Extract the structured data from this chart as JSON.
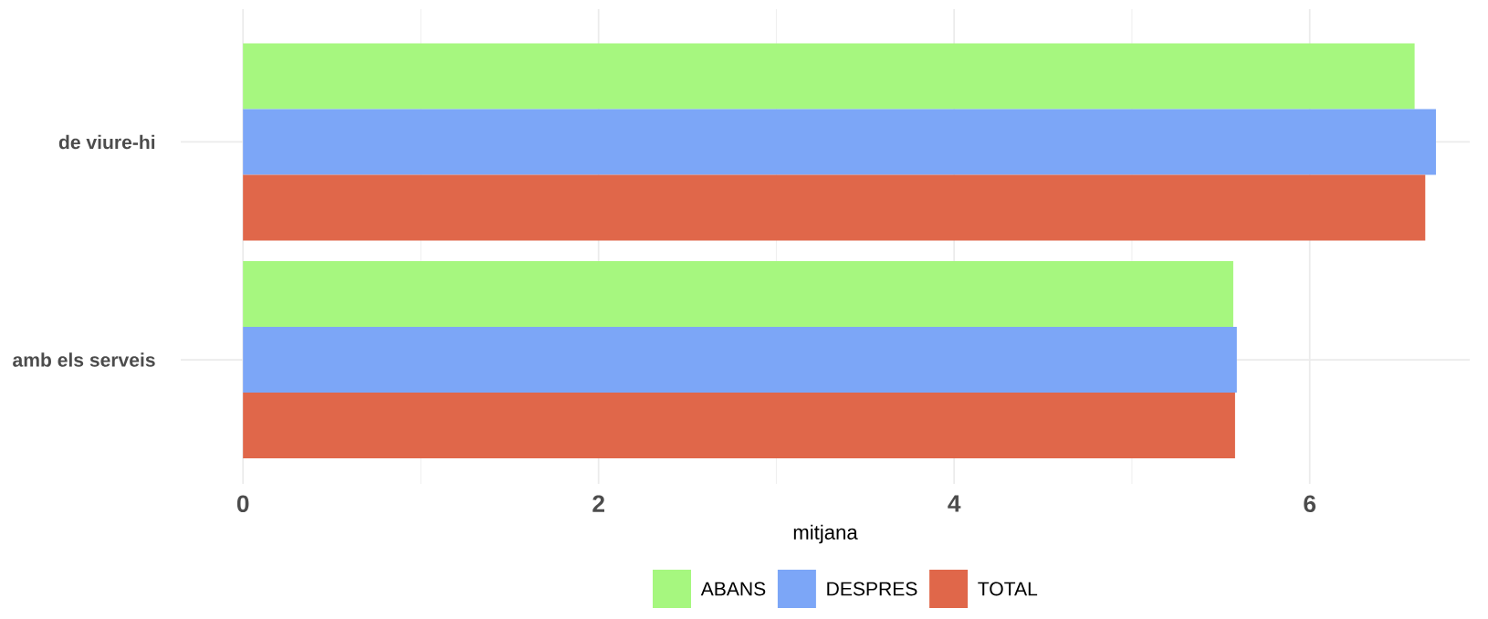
{
  "chart_data": {
    "type": "bar",
    "orientation": "horizontal",
    "xlabel": "mitjana",
    "categories": [
      "de viure-hi",
      "amb els serveis"
    ],
    "series": [
      {
        "name": "ABANS",
        "color": "#a6f77f",
        "values": [
          6.59,
          5.57
        ]
      },
      {
        "name": "DESPRES",
        "color": "#7ca6f7",
        "values": [
          6.71,
          5.59
        ]
      },
      {
        "name": "TOTAL",
        "color": "#e0674a",
        "values": [
          6.65,
          5.58
        ]
      }
    ],
    "xlim": [
      -0.35,
      6.9
    ],
    "xticks": [
      0,
      2,
      4,
      6
    ],
    "grid": true,
    "legend": "bottom"
  }
}
